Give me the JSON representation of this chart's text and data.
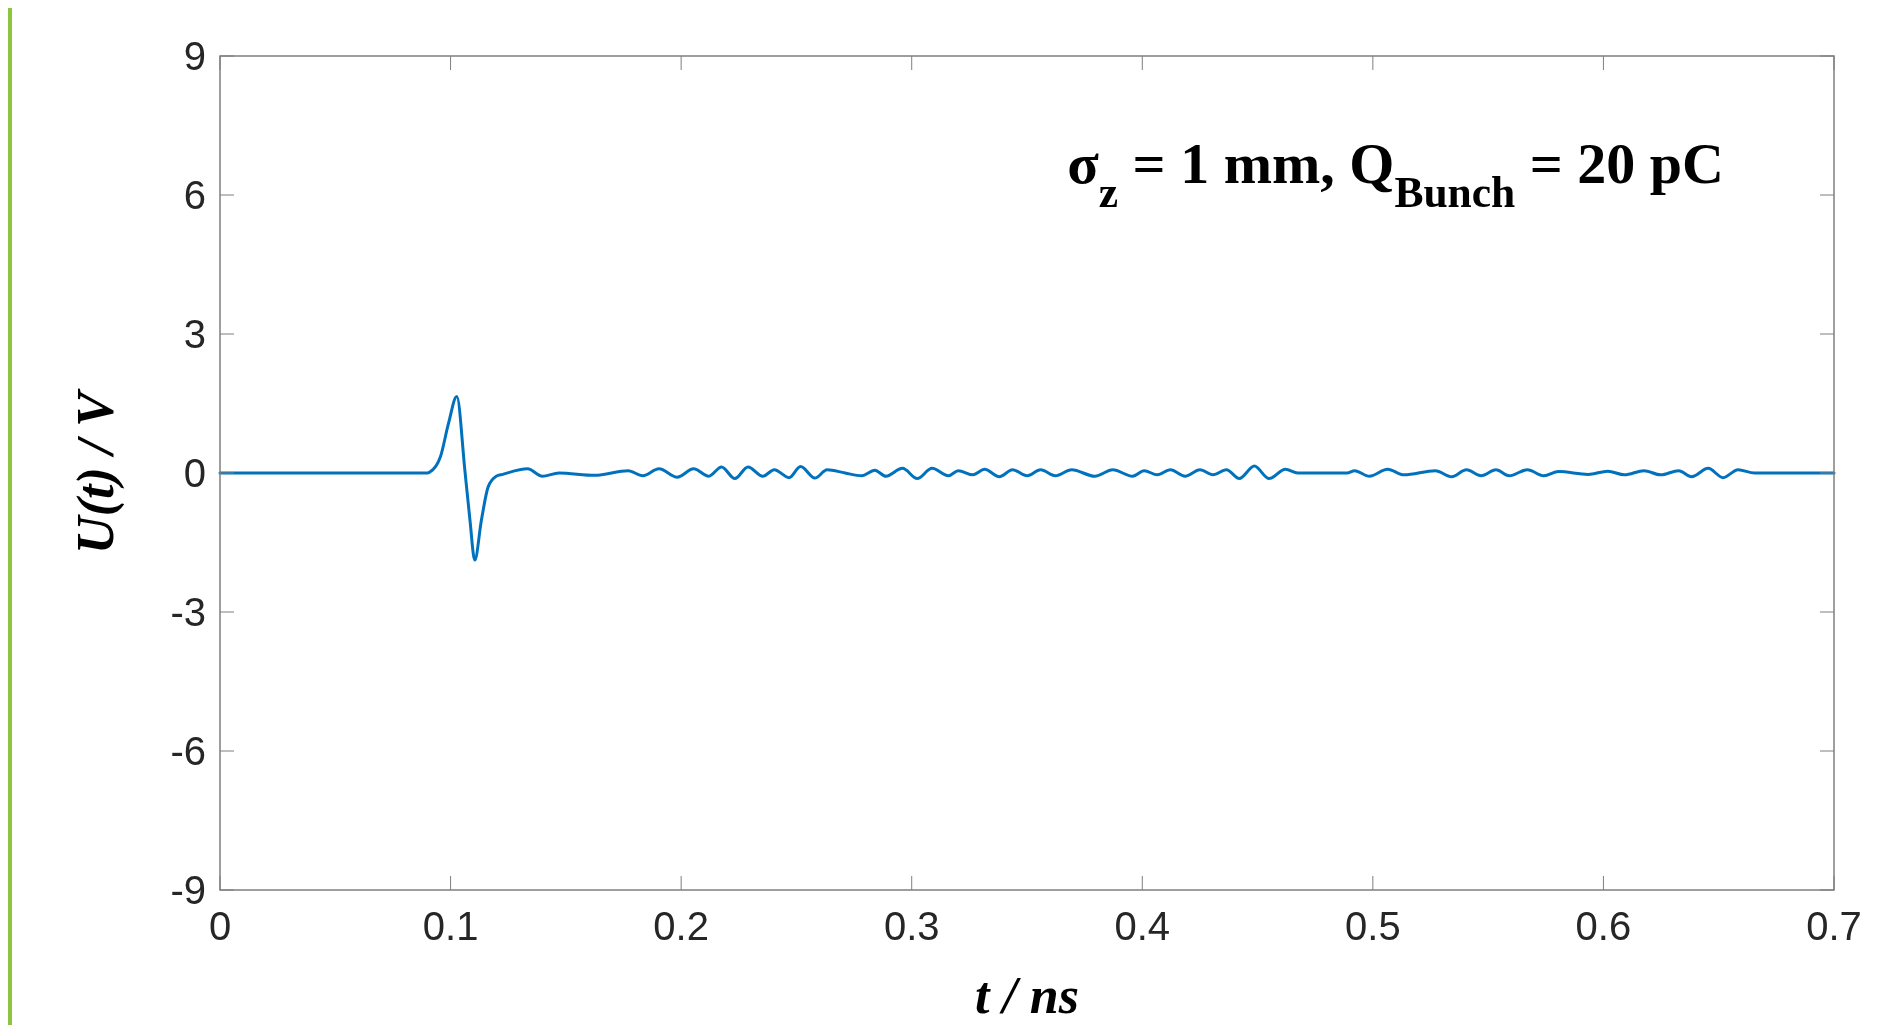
{
  "chart_data": {
    "type": "line",
    "xlabel": "t / ns",
    "ylabel": "U(t) / V",
    "annotations": [
      "σ$_{z}$ = 1 mm, Q$_{Bunch}$ = 20 pC"
    ],
    "xlim": [
      0,
      0.7
    ],
    "xticks": [
      0,
      0.1,
      0.2,
      0.3,
      0.4,
      0.5,
      0.6,
      0.7
    ],
    "ylim": [
      -9,
      9
    ],
    "yticks": [
      -9,
      -6,
      -3,
      0,
      3,
      6,
      9
    ],
    "grid": false,
    "series": [
      {
        "color": "#0072bd",
        "x": [
          0,
          0.09,
          0.091,
          0.0956,
          0.0991,
          0.1027,
          0.1062,
          0.1084,
          0.1105,
          0.1134,
          0.1163,
          0.1198,
          0.1226,
          0.1334,
          0.1398,
          0.147,
          0.1626,
          0.177,
          0.1834,
          0.1904,
          0.1983,
          0.2054,
          0.212,
          0.2175,
          0.2233,
          0.229,
          0.2354,
          0.2404,
          0.2468,
          0.2518,
          0.258,
          0.2633,
          0.2711,
          0.2783,
          0.284,
          0.2888,
          0.296,
          0.3024,
          0.3088,
          0.3159,
          0.3202,
          0.3266,
          0.3316,
          0.338,
          0.3437,
          0.3501,
          0.3559,
          0.3623,
          0.3694,
          0.3794,
          0.3872,
          0.3958,
          0.4008,
          0.4065,
          0.4122,
          0.4186,
          0.425,
          0.4307,
          0.4365,
          0.4421,
          0.4486,
          0.455,
          0.4621,
          0.4674,
          0.4888,
          0.4921,
          0.4985,
          0.5064,
          0.5135,
          0.5271,
          0.5342,
          0.5406,
          0.547,
          0.5534,
          0.5591,
          0.567,
          0.5741,
          0.5805,
          0.5934,
          0.6019,
          0.6091,
          0.6176,
          0.6248,
          0.6326,
          0.6383,
          0.6454,
          0.6519,
          0.6584,
          0.6655,
          0.7
        ],
        "values": [
          0,
          0,
          0.02,
          0.35,
          1.07,
          1.65,
          0.06,
          -1.01,
          -1.88,
          -1.01,
          -0.3,
          -0.07,
          -0.03,
          0.09,
          -0.07,
          0,
          -0.05,
          0.05,
          -0.06,
          0.09,
          -0.09,
          0.09,
          -0.07,
          0.13,
          -0.12,
          0.13,
          -0.07,
          0.07,
          -0.1,
          0.14,
          -0.11,
          0.07,
          0,
          -0.06,
          0.06,
          -0.07,
          0.1,
          -0.12,
          0.1,
          -0.06,
          0.05,
          -0.04,
          0.08,
          -0.08,
          0.07,
          -0.06,
          0.07,
          -0.06,
          0.07,
          -0.07,
          0.07,
          -0.07,
          0.05,
          -0.04,
          0.07,
          -0.07,
          0.07,
          -0.04,
          0.07,
          -0.12,
          0.15,
          -0.12,
          0.08,
          0,
          0,
          0.05,
          -0.07,
          0.08,
          -0.04,
          0.05,
          -0.08,
          0.07,
          -0.06,
          0.07,
          -0.06,
          0.07,
          -0.06,
          0.03,
          -0.03,
          0.04,
          -0.04,
          0.05,
          -0.04,
          0.05,
          -0.08,
          0.1,
          -0.1,
          0.07,
          0,
          0
        ]
      }
    ]
  }
}
